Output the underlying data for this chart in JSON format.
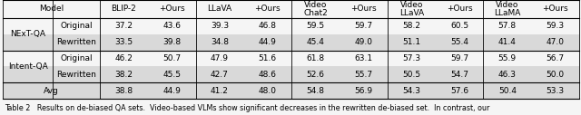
{
  "col_headers": [
    "BLIP-2",
    "+Ours",
    "LLaVA",
    "+Ours",
    "Video\nChat2",
    "+Ours",
    "Video\nLLaVA",
    "+Ours",
    "Video\nLLaMA",
    "+Ours"
  ],
  "row_groups": [
    {
      "group": "NExT-QA",
      "rows": [
        {
          "label": "Original",
          "shade": false,
          "values": [
            37.2,
            43.6,
            39.3,
            46.8,
            59.5,
            59.7,
            58.2,
            60.5,
            57.8,
            59.3
          ]
        },
        {
          "label": "Rewritten",
          "shade": true,
          "values": [
            33.5,
            39.8,
            34.8,
            44.9,
            45.4,
            49.0,
            51.1,
            55.4,
            41.4,
            47.0
          ]
        }
      ]
    },
    {
      "group": "Intent-QA",
      "rows": [
        {
          "label": "Original",
          "shade": false,
          "values": [
            46.2,
            50.7,
            47.9,
            51.6,
            61.8,
            63.1,
            57.3,
            59.7,
            55.9,
            56.7
          ]
        },
        {
          "label": "Rewritten",
          "shade": true,
          "values": [
            38.2,
            45.5,
            42.7,
            48.6,
            52.6,
            55.7,
            50.5,
            54.7,
            46.3,
            50.0
          ]
        }
      ]
    }
  ],
  "avg_row": {
    "label": "Avg",
    "shade": true,
    "values": [
      38.8,
      44.9,
      41.2,
      48.0,
      54.8,
      56.9,
      54.3,
      57.6,
      50.4,
      53.3
    ]
  },
  "caption": "Table 2   Results on de-biased QA sets.  Video-based VLMs show significant decreases in the rewritten de-biased set.  In contrast, our",
  "shade_color": "#d9d9d9",
  "bg_color": "#f0f0f0",
  "font_size": 6.5,
  "header_font_size": 6.5,
  "caption_font_size": 5.8
}
